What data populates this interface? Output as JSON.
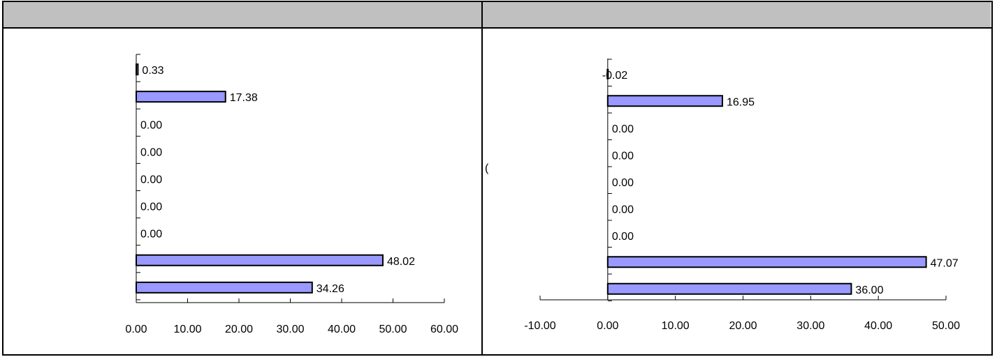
{
  "panels": [
    {
      "header": "",
      "note": ""
    },
    {
      "header": "",
      "note": "("
    }
  ],
  "chart_data": [
    {
      "type": "bar",
      "orientation": "horizontal",
      "title": "",
      "xlabel": "",
      "ylabel": "",
      "categories": [
        "",
        "",
        "",
        "",
        "",
        "",
        "",
        "",
        ""
      ],
      "values": [
        0.33,
        17.38,
        0.0,
        0.0,
        0.0,
        0.0,
        0.0,
        48.02,
        34.26
      ],
      "labels": [
        "0.33",
        "17.38",
        "0.00",
        "0.00",
        "0.00",
        "0.00",
        "0.00",
        "48.02",
        "34.26"
      ],
      "xlim": [
        0,
        60
      ],
      "xticks": [
        0,
        10,
        20,
        30,
        40,
        50,
        60
      ],
      "xtick_labels": [
        "0.00",
        "10.00",
        "20.00",
        "30.00",
        "40.00",
        "50.00",
        "60.00"
      ],
      "grid": false,
      "bar_color": "#9999ff"
    },
    {
      "type": "bar",
      "orientation": "horizontal",
      "title": "",
      "xlabel": "",
      "ylabel": "",
      "categories": [
        "",
        "",
        "",
        "",
        "",
        "",
        "",
        "",
        ""
      ],
      "values": [
        -0.02,
        16.95,
        0.0,
        0.0,
        0.0,
        0.0,
        0.0,
        47.07,
        36.0
      ],
      "labels": [
        "-0.02",
        "16.95",
        "0.00",
        "0.00",
        "0.00",
        "0.00",
        "0.00",
        "47.07",
        "36.00"
      ],
      "xlim": [
        -10,
        50
      ],
      "xticks": [
        -10,
        0,
        10,
        20,
        30,
        40,
        50
      ],
      "xtick_labels": [
        "-10.00",
        "0.00",
        "10.00",
        "20.00",
        "30.00",
        "40.00",
        "50.00"
      ],
      "grid": false,
      "bar_color": "#9999ff"
    }
  ]
}
